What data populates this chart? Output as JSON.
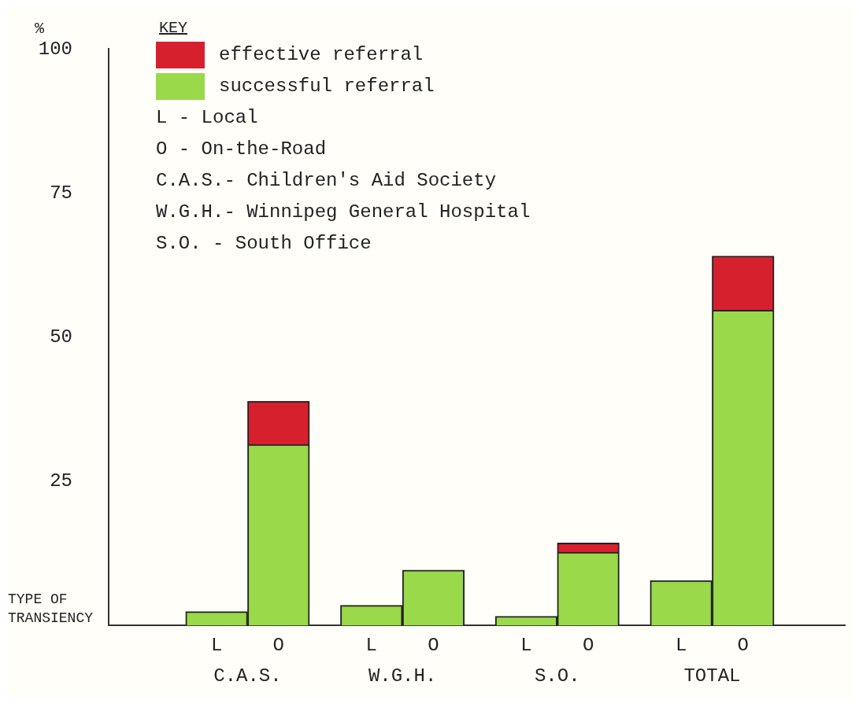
{
  "chart_data": {
    "type": "bar",
    "stacked": true,
    "ylabel": "%",
    "xlabel": "TYPE OF TRANSIENCY",
    "legend_title": "KEY",
    "legend": "top left",
    "categories": [
      "L",
      "O",
      "L",
      "O",
      "L",
      "O",
      "L",
      "O"
    ],
    "series": [
      {
        "name": "successful referral",
        "color": "#9ad94a",
        "values": [
          2.4,
          31.4,
          3.5,
          9.6,
          1.6,
          12.7,
          7.8,
          54.7
        ]
      },
      {
        "name": "effective referral",
        "color": "#d7202e",
        "values": [
          null,
          7.5,
          null,
          null,
          null,
          1.6,
          null,
          9.4
        ]
      }
    ],
    "ylim": [
      0,
      100
    ],
    "yticks": [
      25,
      50,
      75,
      100
    ],
    "grid": false,
    "annotations": [
      "C.A.S.",
      "W.G.H.",
      "S.O.",
      "TOTAL",
      "L - Local",
      "O - On-the-Road",
      "C.A.S.- Children's Aid Society",
      "W.G.H.- Winnipeg General Hospital",
      "S.O. - South Office"
    ]
  }
}
